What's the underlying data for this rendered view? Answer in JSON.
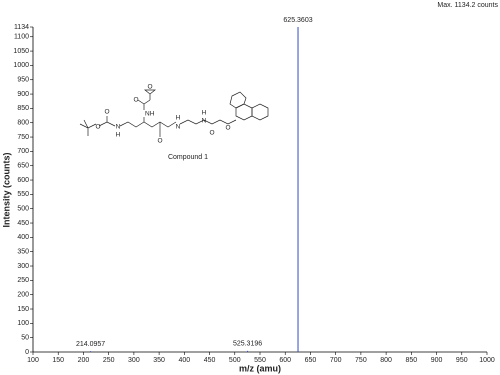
{
  "chart_data": {
    "type": "stem",
    "max_label": "Max.  1134.2 counts",
    "x_label": "m/z (amu)",
    "y_label": "Intensity (counts)",
    "x": [
      214.0957,
      525.3196,
      625.3603
    ],
    "values": [
      3,
      4,
      1134.2
    ],
    "color": "#2f4fc4",
    "xlim": [
      100,
      1000
    ],
    "xticks": [
      100,
      150,
      200,
      250,
      300,
      350,
      400,
      450,
      500,
      550,
      600,
      650,
      700,
      750,
      800,
      850,
      900,
      950,
      1000
    ],
    "ylim": [
      0,
      1134
    ],
    "yticks": [
      0,
      50,
      100,
      150,
      200,
      250,
      300,
      350,
      400,
      450,
      500,
      550,
      600,
      650,
      700,
      750,
      800,
      850,
      900,
      950,
      1000,
      1050,
      1100,
      1134
    ],
    "structure": {
      "name": "Compound 1",
      "atoms": [
        "O",
        "O",
        "N",
        "H",
        "O",
        "NH",
        "O",
        "O",
        "N",
        "H",
        "H",
        "N",
        "O",
        "O"
      ]
    }
  }
}
